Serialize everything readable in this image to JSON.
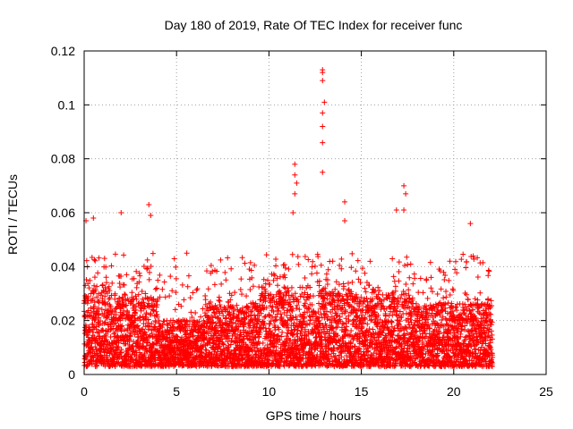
{
  "chart_data": {
    "type": "scatter",
    "title": "Day 180 of 2019, Rate Of TEC Index for receiver func",
    "xlabel": "GPS time / hours",
    "ylabel": "ROTI / TECUs",
    "xlim": [
      0,
      25
    ],
    "ylim": [
      0,
      0.12
    ],
    "xticks": [
      "0",
      "5",
      "10",
      "15",
      "20",
      "25"
    ],
    "yticks": [
      "0",
      "0.02",
      "0.04",
      "0.06",
      "0.08",
      "0.1",
      "0.12"
    ],
    "grid": true,
    "marker": "+",
    "color": "#ff0000",
    "series": [
      {
        "name": "ROTI",
        "x_range": [
          0,
          22.1
        ],
        "typical_range": [
          0.003,
          0.03
        ],
        "notable_points": [
          {
            "x": 12.9,
            "y": 0.113
          },
          {
            "x": 12.9,
            "y": 0.112
          },
          {
            "x": 12.9,
            "y": 0.109
          },
          {
            "x": 13.0,
            "y": 0.101
          },
          {
            "x": 12.9,
            "y": 0.097
          },
          {
            "x": 12.9,
            "y": 0.092
          },
          {
            "x": 12.9,
            "y": 0.086
          },
          {
            "x": 12.9,
            "y": 0.075
          },
          {
            "x": 11.4,
            "y": 0.078
          },
          {
            "x": 11.4,
            "y": 0.074
          },
          {
            "x": 11.5,
            "y": 0.071
          },
          {
            "x": 11.4,
            "y": 0.067
          },
          {
            "x": 11.3,
            "y": 0.06
          },
          {
            "x": 14.1,
            "y": 0.064
          },
          {
            "x": 14.1,
            "y": 0.057
          },
          {
            "x": 17.3,
            "y": 0.07
          },
          {
            "x": 17.4,
            "y": 0.067
          },
          {
            "x": 16.9,
            "y": 0.061
          },
          {
            "x": 17.3,
            "y": 0.061
          },
          {
            "x": 3.5,
            "y": 0.063
          },
          {
            "x": 3.6,
            "y": 0.059
          },
          {
            "x": 2.0,
            "y": 0.06
          },
          {
            "x": 0.5,
            "y": 0.058
          },
          {
            "x": 0.1,
            "y": 0.057
          },
          {
            "x": 20.9,
            "y": 0.056
          }
        ]
      }
    ]
  }
}
